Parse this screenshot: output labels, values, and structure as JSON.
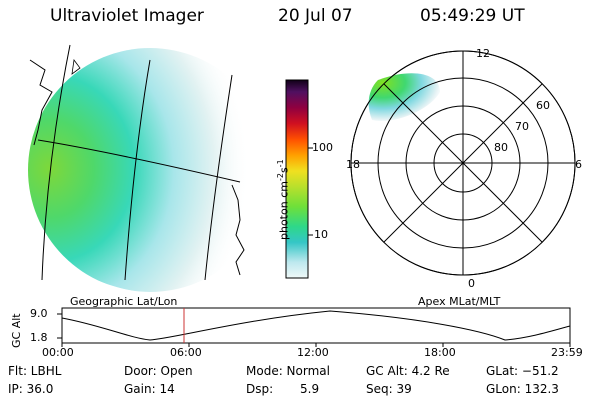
{
  "header": {
    "title": "Ultraviolet Imager",
    "date": "20 Jul 07",
    "time": "05:49:29 UT"
  },
  "colorbar": {
    "label": "photon cm",
    "label_sup1": "-2",
    "label_s": "s",
    "label_sup2": "-1",
    "tick_100": "100",
    "tick_10": "10"
  },
  "geo_panel": {
    "caption": "Geographic Lat/Lon"
  },
  "polar_panel": {
    "caption": "Apex MLat/MLT",
    "mlt_12": "12",
    "mlt_18": "18",
    "mlt_6": "6",
    "mlt_0": "0",
    "lat_60": "60",
    "lat_70": "70",
    "lat_80": "80"
  },
  "timeline": {
    "ylabel": "GC Alt",
    "ymax": "9.0",
    "ymin": "1.8",
    "ticks": [
      "00:00",
      "06:00",
      "12:00",
      "18:00",
      "23:59"
    ]
  },
  "info": {
    "flt": "Flt: LBHL",
    "ip": "IP: 36.0",
    "door": "Door: Open",
    "gain": "Gain: 14",
    "mode": "Mode: Normal",
    "dsp_label": "Dsp:",
    "dsp_value": "5.9",
    "gcalt": "GC Alt: 4.2 Re",
    "seq": "Seq: 39",
    "glat": "GLat: −51.2",
    "glon": "GLon: 132.3"
  },
  "colors": {
    "marker": "#cc3333",
    "axis": "#000000"
  }
}
